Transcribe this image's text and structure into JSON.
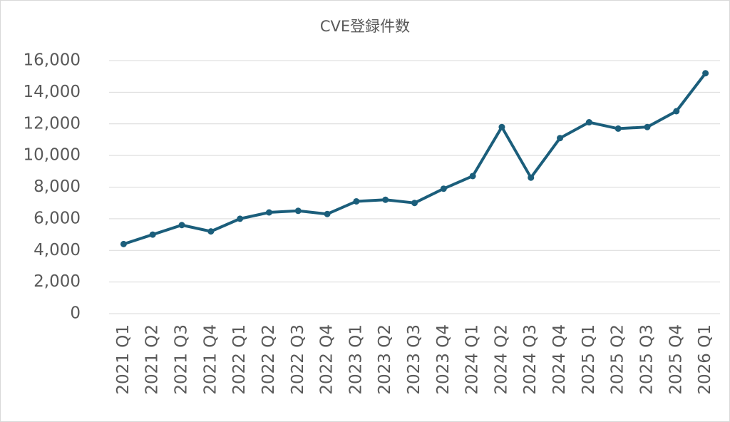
{
  "chart_data": {
    "type": "line",
    "title": "CVE登録件数",
    "categories": [
      "2021 Q1",
      "2021 Q2",
      "2021 Q3",
      "2021 Q4",
      "2022 Q1",
      "2022 Q2",
      "2022 Q3",
      "2022 Q4",
      "2023 Q1",
      "2023 Q2",
      "2023 Q3",
      "2023 Q4",
      "2024 Q1",
      "2024 Q2",
      "2024 Q3",
      "2024 Q4",
      "2025 Q1",
      "2025 Q2",
      "2025 Q3",
      "2025 Q4",
      "2026 Q1"
    ],
    "values": [
      4400,
      5000,
      5600,
      5200,
      6000,
      6400,
      6500,
      6300,
      7100,
      7200,
      7000,
      7900,
      8700,
      11800,
      8600,
      11100,
      12100,
      11700,
      11800,
      12800,
      15200
    ],
    "color": "#1b5e7b",
    "ylim": [
      0,
      16000
    ],
    "yticks": [
      0,
      {
        "value": 2000,
        "label": "2,000"
      },
      {
        "value": 4000,
        "label": "4,000"
      },
      {
        "value": 6000,
        "label": "6,000"
      },
      {
        "value": 8000,
        "label": "8,000"
      },
      {
        "value": 10000,
        "label": "10,000"
      },
      {
        "value": 12000,
        "label": "12,000"
      },
      {
        "value": 14000,
        "label": "14,000"
      },
      {
        "value": 16000,
        "label": "16,000"
      }
    ],
    "grid": true
  }
}
